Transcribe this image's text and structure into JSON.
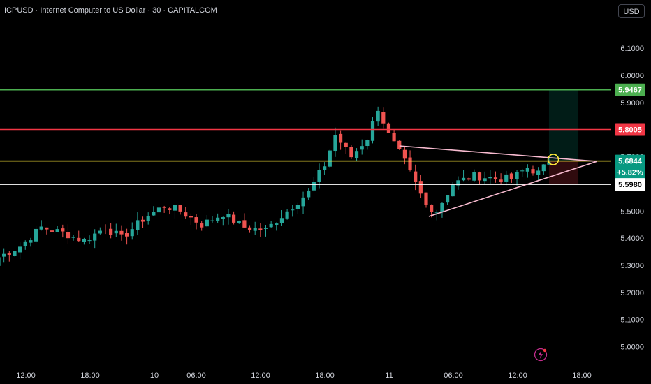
{
  "header": {
    "title": "ICPUSD · Internet Computer to US Dollar · 30 · CAPITALCOM",
    "currency": "USD"
  },
  "colors": {
    "background": "#000000",
    "up": "#26a69a",
    "down": "#ef5350",
    "green_level": "#4caf50",
    "red_level": "#f23645",
    "yellow_level": "#ffeb3b",
    "white_level": "#ffffff",
    "trendline": "#f8bbd0"
  },
  "chart_data": {
    "type": "candlestick",
    "ylim": [
      4.96,
      6.13
    ],
    "y_ticks": [
      "6.1000",
      "6.0000",
      "5.9000",
      "5.8000",
      "5.7000",
      "5.6000",
      "5.5000",
      "5.4000",
      "5.3000",
      "5.2000",
      "5.1000",
      "5.0000"
    ],
    "x_ticks": [
      "12:00",
      "18:00",
      "10",
      "06:00",
      "12:00",
      "18:00",
      "11",
      "06:00",
      "12:00",
      "18:00"
    ],
    "horizontal_levels": [
      {
        "value": 5.9467,
        "label": "5.9467",
        "color": "#4caf50"
      },
      {
        "value": 5.8005,
        "label": "5.8005",
        "color": "#f23645"
      },
      {
        "value": 5.6844,
        "label": "5.6844",
        "color": "#ffeb3b"
      },
      {
        "value": 5.598,
        "label": "5.5980",
        "color": "#ffffff"
      }
    ],
    "last_price": {
      "value": 5.6844,
      "change": "+5.82%"
    },
    "close_path": [
      {
        "t": 0,
        "c": 5.33
      },
      {
        "t": 4,
        "c": 5.37
      },
      {
        "t": 8,
        "c": 5.44
      },
      {
        "t": 12,
        "c": 5.42
      },
      {
        "t": 16,
        "c": 5.39
      },
      {
        "t": 20,
        "c": 5.44
      },
      {
        "t": 23,
        "c": 5.4
      },
      {
        "t": 27,
        "c": 5.47
      },
      {
        "t": 31,
        "c": 5.52
      },
      {
        "t": 34,
        "c": 5.5
      },
      {
        "t": 38,
        "c": 5.45
      },
      {
        "t": 42,
        "c": 5.49
      },
      {
        "t": 46,
        "c": 5.44
      },
      {
        "t": 50,
        "c": 5.43
      },
      {
        "t": 54,
        "c": 5.5
      },
      {
        "t": 58,
        "c": 5.57
      },
      {
        "t": 61,
        "c": 5.67
      },
      {
        "t": 63,
        "c": 5.78
      },
      {
        "t": 66,
        "c": 5.7
      },
      {
        "t": 69,
        "c": 5.77
      },
      {
        "t": 71,
        "c": 5.88
      },
      {
        "t": 73,
        "c": 5.78
      },
      {
        "t": 76,
        "c": 5.68
      },
      {
        "t": 78,
        "c": 5.6
      },
      {
        "t": 80,
        "c": 5.52
      },
      {
        "t": 82,
        "c": 5.5
      },
      {
        "t": 85,
        "c": 5.6
      },
      {
        "t": 89,
        "c": 5.63
      },
      {
        "t": 93,
        "c": 5.62
      },
      {
        "t": 96,
        "c": 5.62
      },
      {
        "t": 99,
        "c": 5.66
      },
      {
        "t": 101,
        "c": 5.64
      },
      {
        "t": 103,
        "c": 5.68
      }
    ],
    "trendlines": [
      {
        "x1": 75,
        "y1": 5.74,
        "x2": 112,
        "y2": 5.683
      },
      {
        "x1": 80.5,
        "y1": 5.48,
        "x2": 112,
        "y2": 5.683
      }
    ],
    "position_box": {
      "x1": 103,
      "x2": 108.5,
      "entry": 5.6844,
      "target": 5.9467,
      "stop": 5.598
    }
  }
}
